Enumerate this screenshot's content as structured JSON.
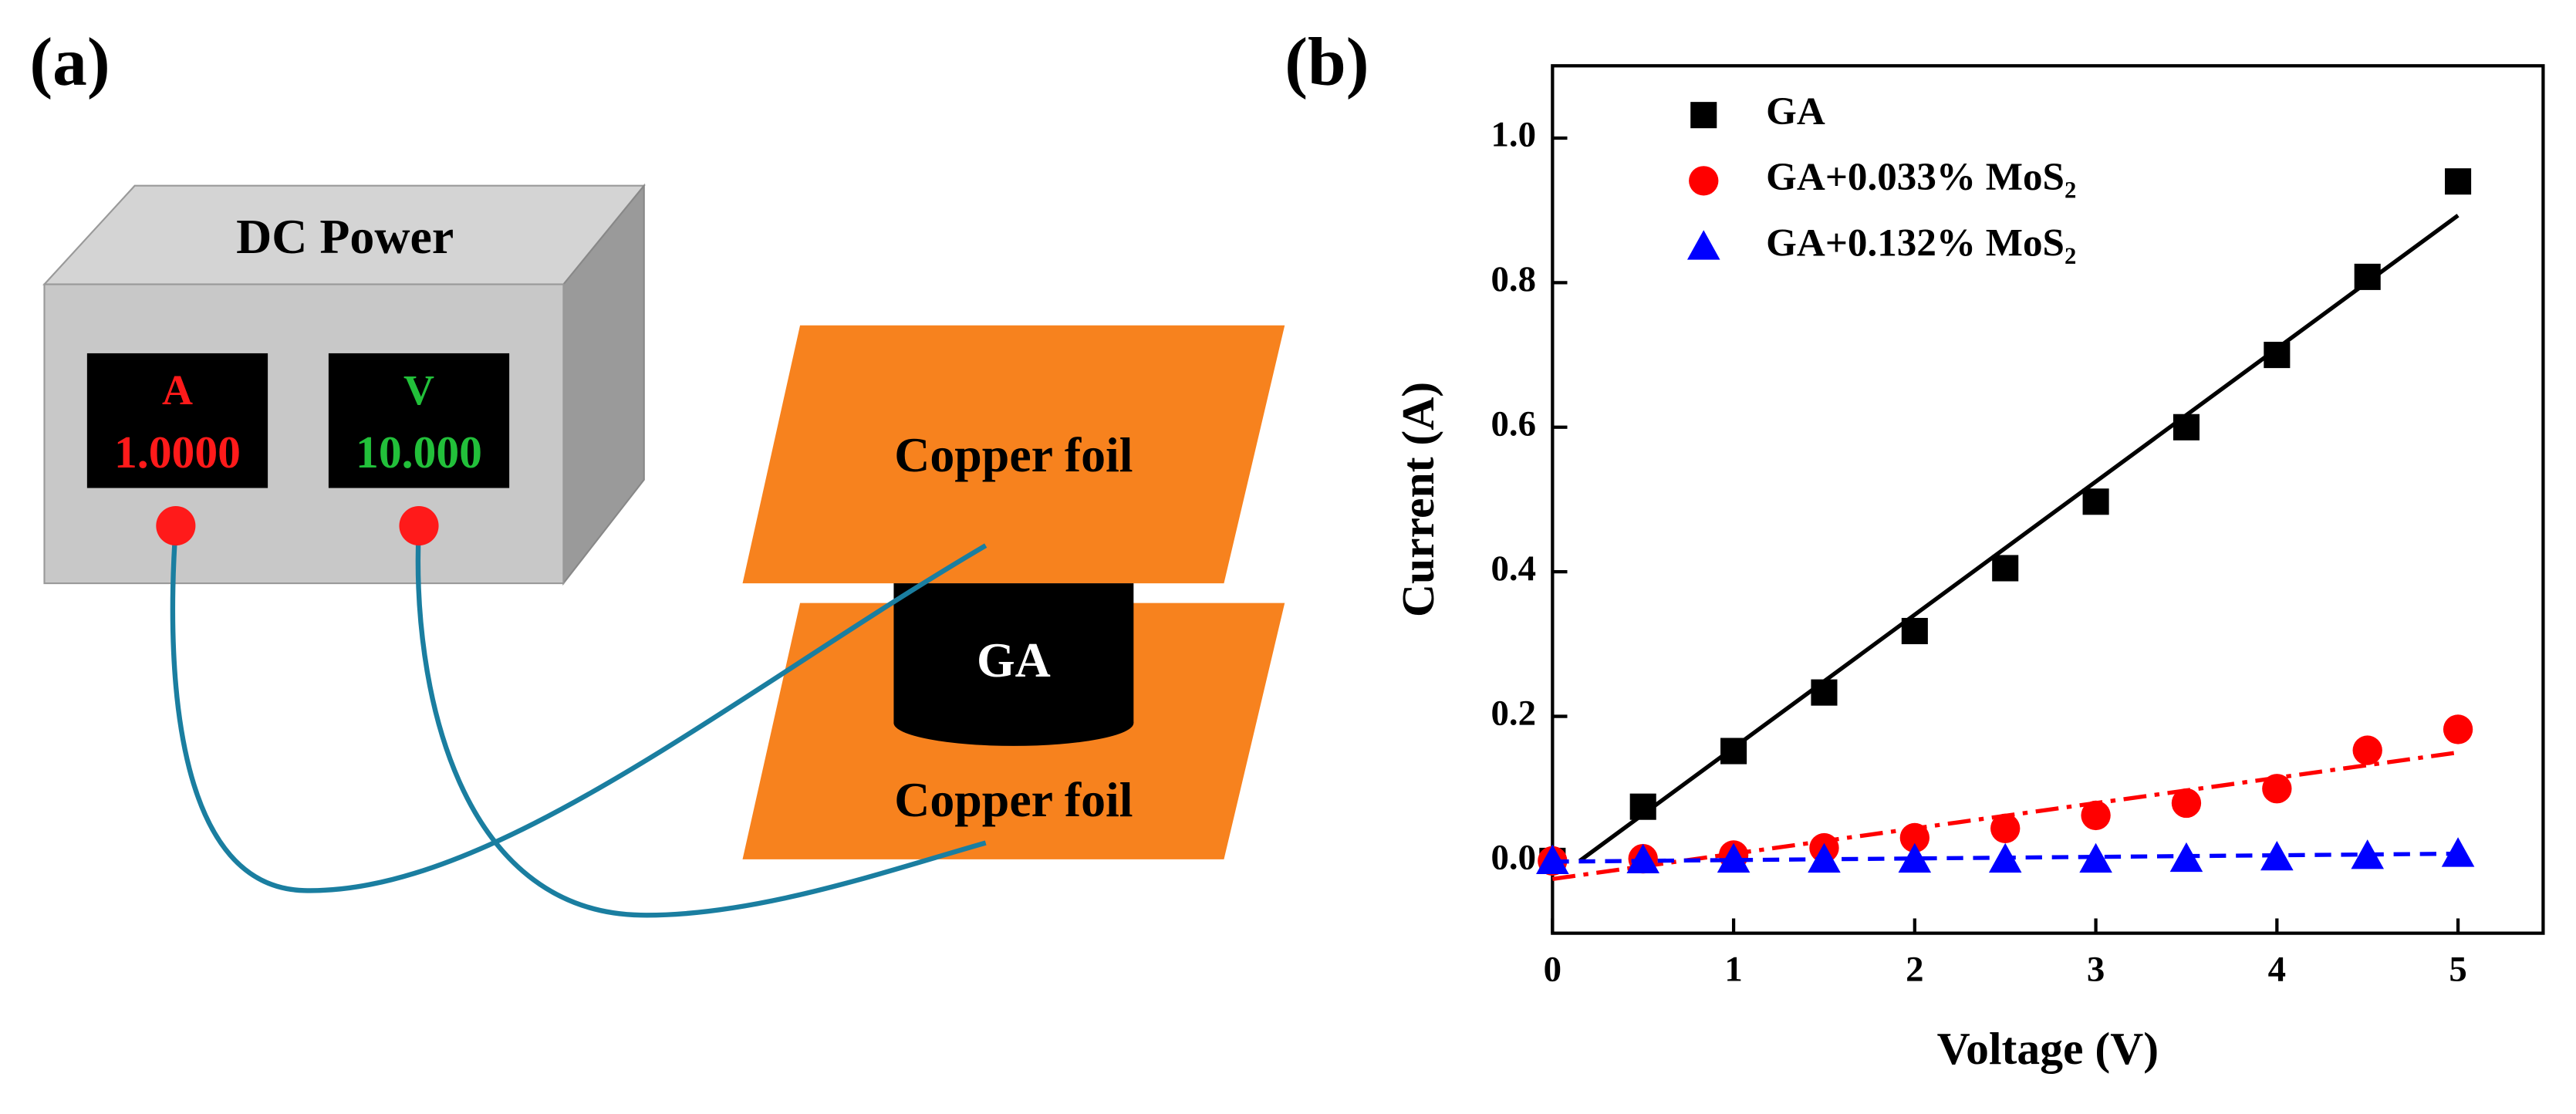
{
  "panel_a": {
    "label": "(a)",
    "device": "DC Power",
    "current_label": "A",
    "current_reading": "1.0000",
    "voltage_label": "V",
    "voltage_reading": "10.000",
    "top_foil": "Copper foil",
    "sample": "GA",
    "bottom_foil": "Copper foil"
  },
  "panel_b_label": "(b)",
  "chart_data": {
    "type": "scatter",
    "x_label": "Voltage (V)",
    "y_label": "Current (A)",
    "x": [
      0,
      0.5,
      1,
      1.5,
      2,
      2.5,
      3,
      3.5,
      4,
      4.5,
      5
    ],
    "series": [
      {
        "name": "GA",
        "color": "#000000",
        "marker": "square",
        "values": [
          0,
          0.075,
          0.152,
          0.233,
          0.318,
          0.405,
          0.497,
          0.6,
          0.7,
          0.808,
          0.94
        ],
        "fit": {
          "x": [
            0.15,
            5
          ],
          "values": [
            0,
            0.893
          ],
          "dash": "solid"
        }
      },
      {
        "name": "GA+0.033% MoS₂",
        "color": "#ff0000",
        "marker": "circle",
        "values": [
          0,
          0.003,
          0.008,
          0.018,
          0.032,
          0.045,
          0.063,
          0.08,
          0.1,
          0.153,
          0.182
        ],
        "fit": {
          "x": [
            0,
            5
          ],
          "values": [
            -0.025,
            0.15
          ],
          "dash": "dashdot"
        }
      },
      {
        "name": "GA+0.132% MoS₂",
        "color": "#0000ff",
        "marker": "triangle",
        "values": [
          0,
          0.001,
          0.002,
          0.002,
          0.002,
          0.002,
          0.002,
          0.003,
          0.005,
          0.007,
          0.01
        ],
        "fit": {
          "x": [
            0,
            5
          ],
          "values": [
            -0.001,
            0.01
          ],
          "dash": "dashed"
        }
      }
    ],
    "xlim": [
      0,
      5.47
    ],
    "ylim": [
      -0.1,
      1.1
    ],
    "xticks": [
      0,
      1,
      2,
      3,
      4,
      5
    ],
    "yticks": [
      {
        "value": 0,
        "label": "0.0"
      },
      {
        "value": 0.2,
        "label": "0.2"
      },
      {
        "value": 0.4,
        "label": "0.4"
      },
      {
        "value": 0.6,
        "label": "0.6"
      },
      {
        "value": 0.8,
        "label": "0.8"
      },
      {
        "value": 1,
        "label": "1.0"
      }
    ],
    "legend": "upper-left"
  }
}
